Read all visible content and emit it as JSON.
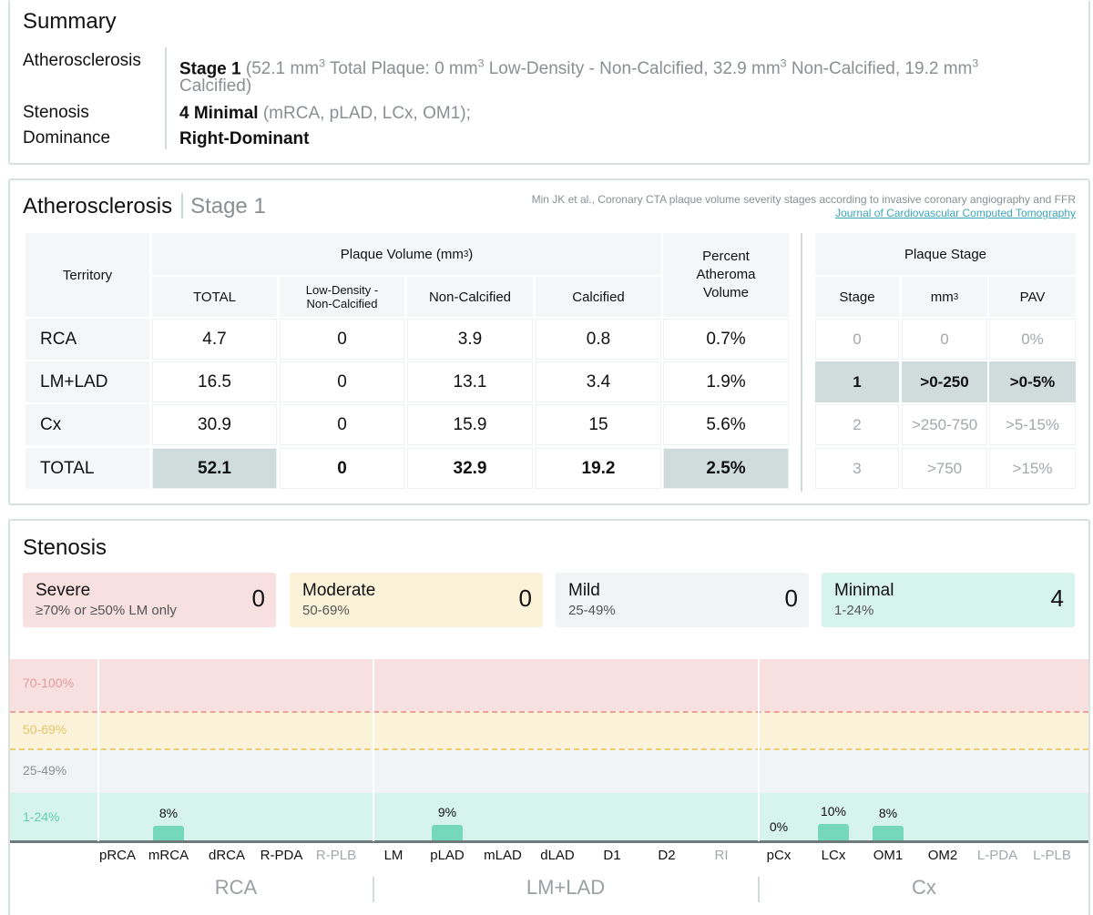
{
  "summary": {
    "title": "Summary",
    "rows": [
      {
        "label": "Atherosclerosis",
        "value": "Stage 1",
        "detail_parts": [
          "(52.1 mm",
          "3",
          " Total Plaque: 0 mm",
          "3",
          " Low-Density - Non-Calcified, 32.9 mm",
          "3",
          " Non-Calcified, 19.2 mm",
          "3"
        ],
        "detail_line2": "Calcified)"
      },
      {
        "label": "Stenosis",
        "value": "4 Minimal",
        "detail": "(mRCA, pLAD, LCx, OM1);"
      },
      {
        "label": "Dominance",
        "value": "Right-Dominant"
      }
    ]
  },
  "atherosclerosis": {
    "title": "Atherosclerosis",
    "stage": "Stage 1",
    "reference": "Min JK et al., Coronary CTA plaque volume severity stages according to invasive coronary angiography and FFR",
    "journal": "Journal of Cardiovascular Computed Tomography",
    "headers": {
      "territory": "Territory",
      "plaque_volume": "Plaque Volume (mm",
      "plaque_volume_sup": "3",
      "plaque_volume_end": ")",
      "total": "TOTAL",
      "low_density": "Low-Density -",
      "low_density2": "Non-Calcified",
      "non_calcified": "Non-Calcified",
      "calcified": "Calcified",
      "pav1": "Percent",
      "pav2": "Atheroma",
      "pav3": "Volume",
      "plaque_stage": "Plaque Stage",
      "stage": "Stage",
      "mm": "mm",
      "mm_sup": "3",
      "pav": "PAV"
    },
    "rows": [
      {
        "territory": "RCA",
        "total": "4.7",
        "low": "0",
        "non": "3.9",
        "cal": "0.8",
        "pav": "0.7%"
      },
      {
        "territory": "LM+LAD",
        "total": "16.5",
        "low": "0",
        "non": "13.1",
        "cal": "3.4",
        "pav": "1.9%"
      },
      {
        "territory": "Cx",
        "total": "30.9",
        "low": "0",
        "non": "15.9",
        "cal": "15",
        "pav": "5.6%"
      },
      {
        "territory": "TOTAL",
        "total": "52.1",
        "low": "0",
        "non": "32.9",
        "cal": "19.2",
        "pav": "2.5%"
      }
    ],
    "stages": [
      {
        "stage": "0",
        "mm": "0",
        "pav": "0%"
      },
      {
        "stage": "1",
        "mm": ">0-250",
        "pav": ">0-5%"
      },
      {
        "stage": "2",
        "mm": ">250-750",
        "pav": ">5-15%"
      },
      {
        "stage": "3",
        "mm": ">750",
        "pav": ">15%"
      }
    ],
    "active_stage_index": 1
  },
  "stenosis": {
    "title": "Stenosis",
    "categories": [
      {
        "name": "Severe",
        "range": "≥70% or ≥50% LM only",
        "count": "0",
        "color": "#f8dfe0"
      },
      {
        "name": "Moderate",
        "range": "50-69%",
        "count": "0",
        "color": "#fbf3d9"
      },
      {
        "name": "Mild",
        "range": "25-49%",
        "count": "0",
        "color": "#f0f4f4"
      },
      {
        "name": "Minimal",
        "range": "1-24%",
        "count": "4",
        "color": "#d6f3ec"
      }
    ],
    "bands": [
      {
        "label": "70-100%",
        "color": "#f8dfe0",
        "text_color": "#e39a9a"
      },
      {
        "label": "50-69%",
        "color": "#fbf3d9",
        "text_color": "#e6c36a"
      },
      {
        "label": "25-49%",
        "color": "#f0f4f4",
        "text_color": "#8a8f93"
      },
      {
        "label": "1-24%",
        "color": "#d6f3ec",
        "text_color": "#5fcfae"
      }
    ],
    "segments": [
      {
        "name": "pRCA",
        "value": null,
        "dim": false
      },
      {
        "name": "mRCA",
        "value": "8%",
        "dim": false
      },
      {
        "name": "dRCA",
        "value": null,
        "dim": false
      },
      {
        "name": "R-PDA",
        "value": null,
        "dim": false
      },
      {
        "name": "R-PLB",
        "value": null,
        "dim": true
      },
      {
        "name": "LM",
        "value": null,
        "dim": false
      },
      {
        "name": "pLAD",
        "value": "9%",
        "dim": false
      },
      {
        "name": "mLAD",
        "value": null,
        "dim": false
      },
      {
        "name": "dLAD",
        "value": null,
        "dim": false
      },
      {
        "name": "D1",
        "value": null,
        "dim": false
      },
      {
        "name": "D2",
        "value": null,
        "dim": false
      },
      {
        "name": "RI",
        "value": null,
        "dim": true
      },
      {
        "name": "pCx",
        "value": "0%",
        "dim": false
      },
      {
        "name": "LCx",
        "value": "10%",
        "dim": false
      },
      {
        "name": "OM1",
        "value": "8%",
        "dim": false
      },
      {
        "name": "OM2",
        "value": null,
        "dim": false
      },
      {
        "name": "L-PDA",
        "value": null,
        "dim": true
      },
      {
        "name": "L-PLB",
        "value": null,
        "dim": true
      }
    ],
    "groups": [
      "RCA",
      "LM+LAD",
      "Cx"
    ]
  }
}
